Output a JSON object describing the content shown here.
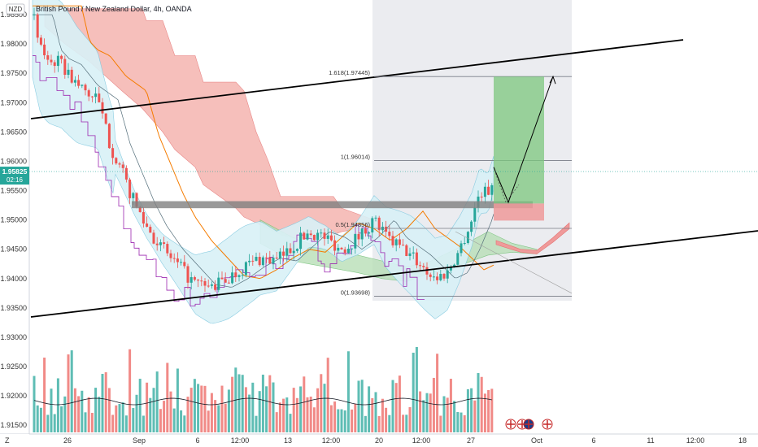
{
  "header": {
    "currency_badge": "NZD",
    "title": "British Pound / New Zealand Dollar, 4h, OANDA"
  },
  "price_tag": {
    "price": "1.95825",
    "countdown": "02:16"
  },
  "colors": {
    "up": "#26a69a",
    "down": "#ef5350",
    "cloud_bear": "#f5b5b0",
    "cloud_bull": "#b8dfb7",
    "bollinger_fill": "#d9f1f7",
    "purple_line": "#9c27b0",
    "orange_line": "#f57c00",
    "shaded_region": "#e9eaee",
    "tp_zone": "#7cc77d",
    "sl_zone": "#ef9a9a"
  },
  "chart_data": {
    "type": "candlestick",
    "title": "British Pound / New Zealand Dollar, 4h, OANDA",
    "y_axis": {
      "range": [
        1.9135,
        1.9875
      ],
      "ticks": [
        "1.98500",
        "1.98000",
        "1.97500",
        "1.97000",
        "1.96500",
        "1.96000",
        "1.95500",
        "1.95000",
        "1.94500",
        "1.94000",
        "1.93500",
        "1.93000",
        "1.92500",
        "1.92000",
        "1.91500"
      ]
    },
    "x_axis": {
      "ticks": [
        "26",
        "Sep",
        "6",
        "12:00",
        "13",
        "12:00",
        "20",
        "12:00",
        "27",
        "Oct",
        "6",
        "11",
        "12:00",
        "18"
      ]
    },
    "last_price": 1.95825,
    "fibonacci": [
      {
        "label": "1.618(1.97445)",
        "value": 1.97445
      },
      {
        "label": "1(1.96014)",
        "value": 1.96014
      },
      {
        "label": "0.5(1.94856)",
        "value": 1.94856
      },
      {
        "label": "0(1.93698)",
        "value": 1.93698
      }
    ],
    "horizontal_zone": {
      "low": 1.952,
      "high": 1.9532
    },
    "trendlines": [
      {
        "name": "upper-channel",
        "from": [
          "Aug 24",
          1.9688
        ],
        "to": [
          "Oct 6",
          1.9822
        ]
      },
      {
        "name": "lower-channel",
        "from": [
          "Aug 24",
          1.9342
        ],
        "to": [
          "Oct 18",
          1.9491
        ]
      }
    ],
    "projection": {
      "entry": 1.9528,
      "stop": 1.951,
      "target": 1.97445
    },
    "icons": [
      "uk-flag-event",
      "uk-flag-event",
      "nz-flag-event",
      "uk-flag-event"
    ]
  }
}
